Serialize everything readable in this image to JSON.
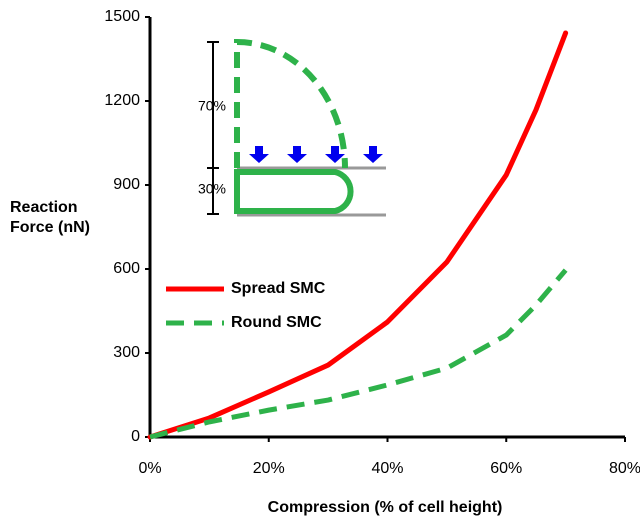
{
  "chart_data": {
    "type": "line",
    "xlabel": "Compression  (% of cell height)",
    "ylabel": "Reaction Force (nN)",
    "xlim": [
      0,
      80
    ],
    "xticks": [
      {
        "value": 0,
        "label": "0%"
      },
      {
        "value": 20,
        "label": "20%"
      },
      {
        "value": 40,
        "label": "40%"
      },
      {
        "value": 60,
        "label": "60%"
      },
      {
        "value": 80,
        "label": "80%"
      }
    ],
    "ylim": [
      0,
      1500
    ],
    "yticks": [
      0,
      300,
      600,
      900,
      1200,
      1500
    ],
    "grid": false,
    "legend": "center-left",
    "series": [
      {
        "name": "Spread SMC",
        "color": "#ff0000",
        "dash": false,
        "x": [
          0,
          10,
          20,
          30,
          40,
          50,
          60,
          65,
          70
        ],
        "values": [
          0,
          68,
          161,
          257,
          411,
          625,
          936,
          1168,
          1443
        ]
      },
      {
        "name": "Round SMC",
        "color": "#2eb24a",
        "dash": true,
        "x": [
          0,
          10,
          20,
          30,
          40,
          50,
          60,
          65,
          70
        ],
        "values": [
          0,
          54,
          96,
          132,
          186,
          246,
          364,
          471,
          596
        ]
      }
    ]
  },
  "inset": {
    "labels": [
      "70%",
      "30%"
    ]
  }
}
